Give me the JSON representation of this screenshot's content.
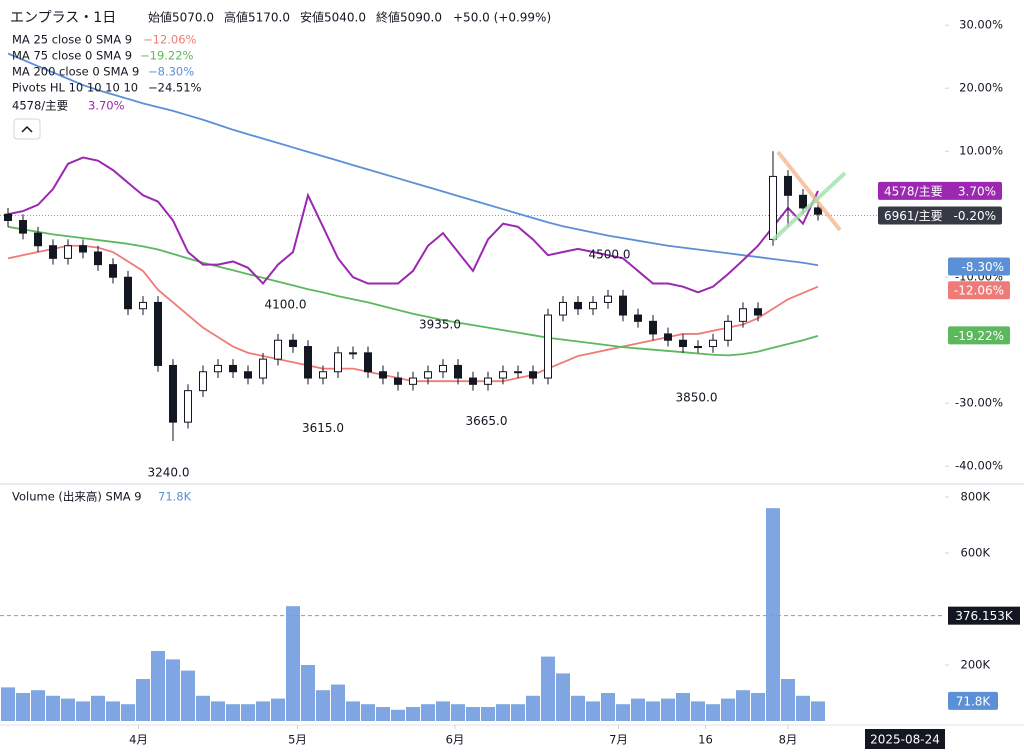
{
  "chart_data": [
    {
      "type": "candlestick",
      "title": "エンプラス・1日",
      "legend_ohlc": [
        "始値5070.0",
        "高値5170.0",
        "安値5040.0",
        "終値5090.0",
        "+50.0 (+0.99%)"
      ],
      "open": [
        0,
        -1,
        -3,
        -5,
        -7,
        -5,
        -6,
        -8,
        -10,
        -15,
        -14,
        -24,
        -33,
        -28,
        -25,
        -24,
        -25,
        -26,
        -23,
        -20,
        -21,
        -26,
        -25,
        -22,
        -22,
        -25,
        -26,
        -27,
        -26,
        -25,
        -24,
        -26,
        -27,
        -26,
        -25,
        -25,
        -26,
        -16,
        -14,
        -15,
        -14,
        -13,
        -16,
        -17,
        -19,
        -20,
        -21,
        -21,
        -20,
        -17,
        -15,
        -4,
        6,
        3,
        1
      ],
      "high": [
        1,
        0,
        -2,
        -4,
        -4,
        -4,
        -5,
        -7,
        -9,
        -13,
        -13,
        -23,
        -27,
        -24,
        -23,
        -23,
        -24,
        -22,
        -19,
        -19,
        -20,
        -24,
        -21,
        -21,
        -21,
        -24,
        -25,
        -25,
        -24,
        -23,
        -23,
        -25,
        -25,
        -24,
        -24,
        -24,
        -15,
        -13,
        -13,
        -13,
        -12,
        -12,
        -15,
        -16,
        -18,
        -19,
        -20,
        -19,
        -16,
        -14,
        -14,
        10,
        7,
        4,
        2
      ],
      "low": [
        -2,
        -4,
        -6,
        -8,
        -8,
        -7,
        -9,
        -11,
        -16,
        -16,
        -25,
        -36,
        -34,
        -29,
        -26,
        -26,
        -27,
        -27,
        -24,
        -22,
        -27,
        -27,
        -26,
        -23,
        -26,
        -27,
        -28,
        -28,
        -27,
        -26,
        -27,
        -28,
        -28,
        -27,
        -26,
        -27,
        -27,
        -17,
        -16,
        -16,
        -15,
        -17,
        -18,
        -20,
        -21,
        -22,
        -22,
        -22,
        -21,
        -18,
        -17,
        -5,
        -2,
        0,
        -1
      ],
      "close": [
        -1,
        -3,
        -5,
        -7,
        -5,
        -6,
        -8,
        -10,
        -15,
        -14,
        -24,
        -33,
        -28,
        -25,
        -24,
        -25,
        -26,
        -23,
        -20,
        -21,
        -26,
        -25,
        -22,
        -22,
        -25,
        -26,
        -27,
        -26,
        -25,
        -24,
        -26,
        -27,
        -26,
        -25,
        -25,
        -26,
        -16,
        -14,
        -15,
        -14,
        -13,
        -16,
        -17,
        -19,
        -20,
        -21,
        -21,
        -20,
        -17,
        -15,
        -16,
        6,
        3,
        1,
        0
      ],
      "badge": {
        "name": "6961/主要",
        "value": -0.2,
        "label": "-0.20%",
        "color": "#363a45"
      },
      "series": [
        {
          "name": "MA 25 close 0 SMA 9",
          "legend_value": "−12.06%",
          "color": "#ef7b78",
          "values": [
            -7,
            -6.5,
            -6,
            -5.5,
            -5,
            -5,
            -5.3,
            -6,
            -7.5,
            -9,
            -12,
            -14,
            -16,
            -18,
            -19.5,
            -21,
            -22,
            -22.5,
            -23,
            -23.5,
            -24,
            -24.5,
            -24.5,
            -24.5,
            -25,
            -25.5,
            -26,
            -26.5,
            -26.5,
            -26.5,
            -26.5,
            -26.5,
            -26.5,
            -26.5,
            -26,
            -25.5,
            -24.5,
            -23.5,
            -22.5,
            -22,
            -21.5,
            -21,
            -20.5,
            -20,
            -19.5,
            -19,
            -19,
            -18.5,
            -18,
            -17.5,
            -16.5,
            -15,
            -13.5,
            -12.5,
            -11.5
          ],
          "badge": {
            "value": -12.06,
            "label": "-12.06%"
          }
        },
        {
          "name": "MA 75 close 0 SMA 9",
          "legend_value": "−19.22%",
          "color": "#5cb85c",
          "values": [
            -2,
            -2.4,
            -2.8,
            -3.2,
            -3.5,
            -3.8,
            -4.1,
            -4.4,
            -4.7,
            -5.1,
            -5.6,
            -6.3,
            -7,
            -7.7,
            -8.3,
            -8.9,
            -9.5,
            -10.1,
            -10.7,
            -11.3,
            -11.9,
            -12.4,
            -13,
            -13.5,
            -14,
            -14.6,
            -15.2,
            -15.8,
            -16.3,
            -16.8,
            -17.2,
            -17.6,
            -18,
            -18.4,
            -18.8,
            -19.2,
            -19.6,
            -19.9,
            -20.2,
            -20.5,
            -20.8,
            -21.1,
            -21.3,
            -21.5,
            -21.7,
            -21.9,
            -22.1,
            -22.3,
            -22.4,
            -22.2,
            -21.8,
            -21.2,
            -20.6,
            -20,
            -19.3
          ],
          "badge": {
            "value": -19.22,
            "label": "-19.22%"
          }
        },
        {
          "name": "MA 200 close 0 SMA 9",
          "legend_value": "−8.30%",
          "color": "#5b8fd6",
          "values": [
            25.5,
            24.5,
            23.5,
            22.5,
            21.5,
            20.5,
            19.7,
            19,
            18.3,
            17.6,
            17,
            16.4,
            15.7,
            15,
            14.2,
            13.4,
            12.7,
            12,
            11.3,
            10.6,
            9.9,
            9.2,
            8.5,
            7.8,
            7.1,
            6.4,
            5.7,
            5,
            4.3,
            3.6,
            2.9,
            2.2,
            1.5,
            0.8,
            0.1,
            -0.6,
            -1.3,
            -1.9,
            -2.4,
            -2.9,
            -3.4,
            -3.8,
            -4.2,
            -4.6,
            -5,
            -5.3,
            -5.6,
            -5.9,
            -6.2,
            -6.5,
            -6.8,
            -7.1,
            -7.4,
            -7.7,
            -8.1
          ],
          "badge": {
            "value": -8.3,
            "label": "-8.30%"
          }
        },
        {
          "name": "4578/主要",
          "legend_value": "3.70%",
          "color": "#9c27b0",
          "values": [
            0,
            0.5,
            1.5,
            4,
            8,
            9,
            8.5,
            7,
            5,
            3,
            2,
            -1,
            -6,
            -8,
            -8,
            -7.5,
            -8.5,
            -11,
            -8,
            -6,
            3,
            -2,
            -7,
            -10,
            -11,
            -11,
            -11,
            -9,
            -5,
            -3,
            -6,
            -9,
            -4,
            -1.5,
            -2,
            -4,
            -6.5,
            -6,
            -5.5,
            -6,
            -6.5,
            -7,
            -9,
            -11,
            -11,
            -11.5,
            -12.4,
            -11.5,
            -9.5,
            -7.3,
            -5,
            -2,
            1,
            -1.5,
            3.7
          ],
          "badge": {
            "value": 3.7,
            "label": "3.70%"
          }
        }
      ],
      "pivots": {
        "name": "Pivots HL 10 10 10 10",
        "legend_value": "−24.51%",
        "labels": [
          {
            "label": "3240.0",
            "x": 10.7,
            "y": -41.1
          },
          {
            "label": "4100.0",
            "x": 18.5,
            "y": -14.4
          },
          {
            "label": "3615.0",
            "x": 21,
            "y": -34
          },
          {
            "label": "3935.0",
            "x": 28.8,
            "y": -17.6
          },
          {
            "label": "3665.0",
            "x": 31.9,
            "y": -32.9
          },
          {
            "label": "4500.0",
            "x": 40.1,
            "y": -6.5
          },
          {
            "label": "3850.0",
            "x": 45.9,
            "y": -29.2
          }
        ]
      },
      "ylim": [
        -42.5,
        34
      ],
      "yticks": [
        {
          "value": 30,
          "label": "30.00%"
        },
        {
          "value": 20,
          "label": "20.00%"
        },
        {
          "value": 10,
          "label": "10.00%"
        },
        {
          "value": -10,
          "label": "-10.00%"
        },
        {
          "value": -30,
          "label": "-30.00%"
        },
        {
          "value": -40,
          "label": "-40.00%"
        }
      ]
    },
    {
      "type": "bar",
      "title": "Volume (出来高) SMA 9",
      "legend_value": "71.8K",
      "color": "#7fa6e2",
      "values": [
        120000,
        100000,
        110000,
        90000,
        80000,
        70000,
        90000,
        70000,
        60000,
        150000,
        250000,
        220000,
        180000,
        90000,
        70000,
        60000,
        60000,
        70000,
        80000,
        410000,
        200000,
        110000,
        130000,
        70000,
        60000,
        50000,
        40000,
        50000,
        60000,
        70000,
        60000,
        50000,
        50000,
        60000,
        60000,
        90000,
        230000,
        170000,
        90000,
        70000,
        100000,
        60000,
        80000,
        70000,
        80000,
        100000,
        70000,
        60000,
        80000,
        110000,
        100000,
        760000,
        150000,
        90000,
        70000
      ],
      "ylim": [
        0,
        832000
      ],
      "yticks": [
        {
          "value": 800000,
          "label": "800K"
        },
        {
          "value": 600000,
          "label": "600K"
        },
        {
          "value": 200000,
          "label": "200K"
        }
      ],
      "cursor": {
        "value": 376153,
        "label": "376.153K"
      },
      "sma_badge": {
        "value": 71800,
        "label": "71.8K"
      },
      "xticks": [
        {
          "value": 8.7,
          "label": "4月"
        },
        {
          "value": 19.3,
          "label": "5月"
        },
        {
          "value": 29.8,
          "label": "6月"
        },
        {
          "value": 40.7,
          "label": "7月"
        },
        {
          "value": 46.5,
          "label": "16"
        },
        {
          "value": 52,
          "label": "8月"
        }
      ],
      "cursor_date": {
        "value": 59.8,
        "label": "2025-08-24"
      }
    }
  ]
}
